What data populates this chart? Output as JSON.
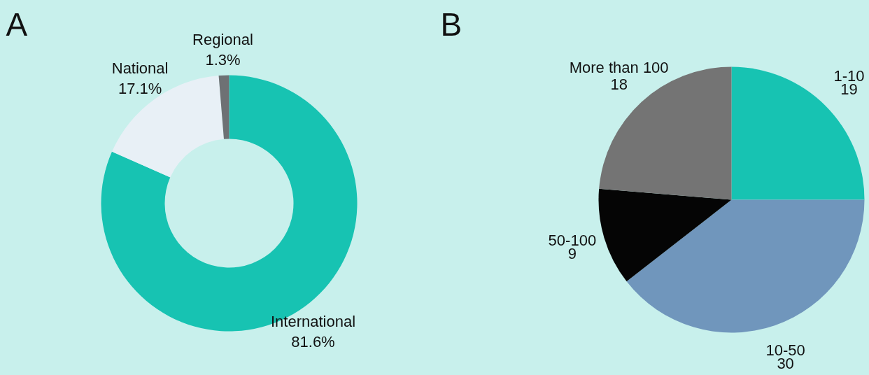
{
  "chart_data": [
    {
      "type": "donut",
      "title": "A",
      "categories": [
        "International",
        "National",
        "Regional"
      ],
      "values": [
        81.6,
        17.1,
        1.3
      ],
      "colors": [
        "#17c3b2",
        "#e8f0f6",
        "#6e7174"
      ],
      "value_labels": [
        "81.6%",
        "17.1%",
        "1.3%"
      ]
    },
    {
      "type": "pie",
      "title": "B",
      "categories": [
        "1-10",
        "10-50",
        "50-100",
        "More than 100"
      ],
      "values": [
        19,
        30,
        9,
        18
      ],
      "colors": [
        "#17c3b2",
        "#7096bc",
        "#050505",
        "#747474"
      ],
      "data_labels": true
    }
  ]
}
